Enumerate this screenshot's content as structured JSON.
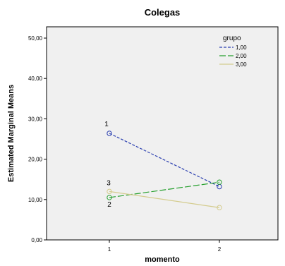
{
  "chart_data": {
    "type": "line",
    "title": "Colegas",
    "xlabel": "momento",
    "ylabel": "Estimated Marginal Means",
    "categories": [
      "1",
      "2"
    ],
    "ylim": [
      0,
      50
    ],
    "yticks": [
      "0,00",
      "10,00",
      "20,00",
      "30,00",
      "40,00",
      "50,00"
    ],
    "grid": false,
    "legend_title": "grupo",
    "legend_position": "top-right",
    "series": [
      {
        "name": "1,00",
        "values": [
          26.4,
          13.2
        ],
        "color": "#2b3fb0",
        "dash": "dashed",
        "marker_label": "1"
      },
      {
        "name": "2,00",
        "values": [
          10.5,
          14.3
        ],
        "color": "#27a02f",
        "dash": "longdash",
        "marker_label": "2"
      },
      {
        "name": "3,00",
        "values": [
          12.0,
          8.0
        ],
        "color": "#d4cc8e",
        "dash": "solid",
        "marker_label": "3"
      }
    ]
  }
}
